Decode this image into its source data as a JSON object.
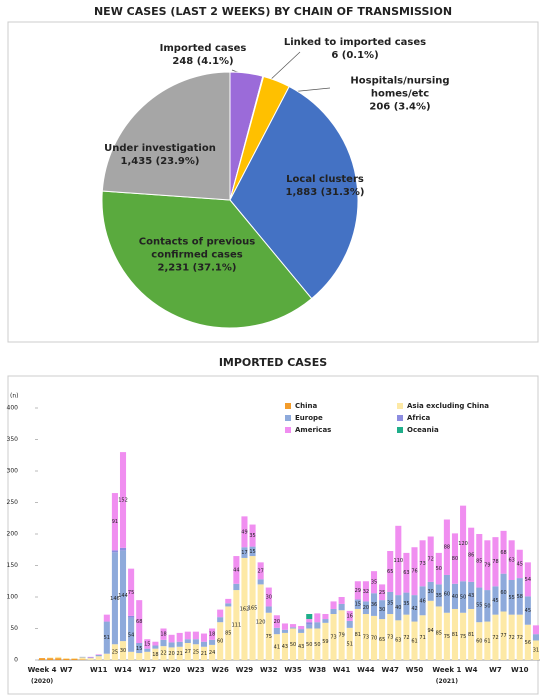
{
  "chart_data": [
    {
      "type": "pie",
      "title": "NEW CASES (LAST 2 WEEKS) BY CHAIN OF TRANSMISSION",
      "categories": [
        "Imported cases",
        "Linked to imported cases",
        "Hospitals/nursing homes/etc",
        "Local clusters",
        "Contacts of previous confirmed cases",
        "Under investigation"
      ],
      "values": [
        248,
        6,
        206,
        1883,
        2231,
        1435
      ],
      "value_labels": [
        "248 (4.1%)",
        "6 (0.1%)",
        "206 (3.4%)",
        "1,883 (31.3%)",
        "2,231 (37.1%)",
        "1,435 (23.9%)"
      ],
      "colors": [
        "#9b6bd9",
        "#e8483b",
        "#ffc000",
        "#4472c4",
        "#5aaa3e",
        "#a6a6a6"
      ]
    },
    {
      "type": "bar",
      "stacked": true,
      "title": "IMPORTED CASES",
      "ylabel": "(n)",
      "categories": [
        "Week 4\n(2020)",
        null,
        null,
        "W7",
        null,
        null,
        null,
        "W11",
        null,
        null,
        "W14",
        null,
        null,
        "W17",
        null,
        null,
        "W20",
        null,
        null,
        "W23",
        null,
        null,
        "W26",
        null,
        null,
        "W29",
        null,
        null,
        "W32",
        null,
        null,
        "W35",
        null,
        null,
        "W38",
        null,
        null,
        "W41",
        null,
        null,
        "W44",
        null,
        null,
        "W47",
        null,
        null,
        "W50",
        null,
        null,
        null,
        "Week 1\n(2021)",
        null,
        null,
        "W4",
        null,
        null,
        "W7",
        null,
        null,
        "W10",
        null,
        null
      ],
      "series": [
        {
          "name": "China",
          "color": "#f39c2b",
          "values": [
            3,
            3,
            3,
            2,
            2,
            1,
            0,
            0,
            0,
            0,
            0,
            0,
            0,
            0,
            0,
            0,
            0,
            0,
            0,
            0,
            0,
            0,
            0,
            0,
            0,
            0,
            0,
            0,
            0,
            0,
            0,
            0,
            0,
            0,
            0,
            0,
            0,
            0,
            0,
            0,
            0,
            0,
            0,
            0,
            0,
            0,
            0,
            0,
            0,
            0,
            0,
            0,
            0,
            0,
            0,
            0,
            0,
            0,
            0,
            0,
            0,
            0
          ]
        },
        {
          "name": "Asia excluding China",
          "color": "#fde9a6",
          "values": [
            0,
            1,
            2,
            1,
            1,
            3,
            3,
            6,
            10,
            25,
            30,
            13,
            11,
            13,
            18,
            22,
            20,
            21,
            27,
            25,
            21,
            24,
            60,
            85,
            111,
            162,
            165,
            120,
            75,
            41,
            43,
            50,
            43,
            50,
            50,
            59,
            73,
            79,
            51,
            81,
            73,
            70,
            65,
            73,
            63,
            72,
            61,
            71,
            94,
            85,
            75,
            81,
            75,
            81,
            60,
            61,
            72,
            77,
            72,
            72,
            56,
            31
          ]
        },
        {
          "name": "Europe",
          "color": "#8eaadb",
          "values": [
            0,
            0,
            0,
            0,
            0,
            1,
            1,
            2,
            51,
            146,
            144,
            54,
            15,
            5,
            5,
            10,
            8,
            8,
            6,
            8,
            8,
            8,
            8,
            5,
            10,
            17,
            15,
            8,
            10,
            10,
            5,
            2,
            6,
            6,
            10,
            6,
            8,
            10,
            11,
            15,
            20,
            36,
            30,
            35,
            40,
            35,
            42,
            46,
            30,
            35,
            60,
            40,
            50,
            43,
            55,
            50,
            45,
            60,
            55,
            58,
            45,
            10
          ]
        },
        {
          "name": "Africa",
          "color": "#8c8ce0",
          "values": [
            0,
            0,
            0,
            0,
            0,
            0,
            0,
            0,
            0,
            3,
            4,
            3,
            1,
            0,
            0,
            0,
            0,
            0,
            0,
            0,
            0,
            0,
            0,
            0,
            0,
            0,
            0,
            0,
            0,
            0,
            0,
            0,
            0,
            4,
            0,
            0,
            0,
            0,
            0,
            0,
            0,
            0,
            0,
            0,
            0,
            0,
            0,
            0,
            0,
            0,
            0,
            0,
            0,
            0,
            0,
            0,
            0,
            0,
            0,
            0,
            0,
            0
          ]
        },
        {
          "name": "Americas",
          "color": "#f08ef0",
          "values": [
            0,
            0,
            0,
            0,
            0,
            0,
            1,
            1,
            11,
            91,
            152,
            75,
            68,
            15,
            6,
            18,
            12,
            14,
            12,
            12,
            13,
            18,
            12,
            7,
            44,
            49,
            35,
            27,
            30,
            20,
            10,
            5,
            5,
            5,
            14,
            8,
            12,
            11,
            16,
            29,
            32,
            35,
            25,
            65,
            110,
            63,
            76,
            73,
            72,
            50,
            88,
            80,
            120,
            86,
            85,
            79,
            78,
            68,
            63,
            45,
            54,
            14
          ]
        },
        {
          "name": "Oceania",
          "color": "#1fae8a",
          "values": [
            0,
            0,
            0,
            0,
            0,
            0,
            0,
            0,
            0,
            0,
            0,
            0,
            0,
            0,
            0,
            0,
            0,
            0,
            0,
            0,
            0,
            0,
            0,
            0,
            0,
            0,
            0,
            0,
            0,
            0,
            0,
            0,
            0,
            8,
            0,
            0,
            0,
            0,
            0,
            0,
            0,
            0,
            0,
            0,
            0,
            0,
            0,
            0,
            0,
            0,
            0,
            0,
            0,
            0,
            0,
            0,
            0,
            0,
            0,
            0,
            0,
            0
          ]
        }
      ],
      "ylim": [
        0,
        400
      ],
      "yticks": [
        0,
        50,
        100,
        150,
        200,
        250,
        300,
        350,
        400
      ],
      "legend": "top-right"
    }
  ]
}
